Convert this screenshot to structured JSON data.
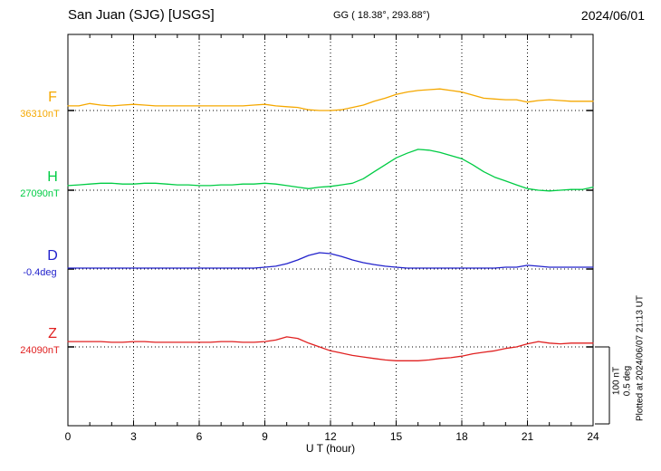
{
  "header": {
    "station": "San Juan (SJG)  [USGS]",
    "coordinates": "GG ( 18.38°, 293.88°)",
    "date": "2024/06/01"
  },
  "sidebar_right": {
    "scale_nt": "100 nT",
    "scale_deg": "0.5 deg",
    "plotted_at": "Plotted at 2024/06/07 21:13 UT"
  },
  "chart_data": {
    "type": "line",
    "title": "San Juan (SJG) [USGS] magnetogram 2024/06/01",
    "xlabel": "U T (hour)",
    "xlim": [
      0,
      24
    ],
    "x_ticks": [
      0,
      3,
      6,
      9,
      12,
      15,
      18,
      21,
      24
    ],
    "x_step_hours": 0.5,
    "grid": "vertical dotted lines at 3-hour ticks; dotted horizontal baseline per trace",
    "values_are_offsets_from_baseline": true,
    "scale": {
      "nT_per_division": 100,
      "deg_per_division": 0.5
    },
    "series": [
      {
        "name": "F",
        "label": "F",
        "baseline_label": "36310nT",
        "baseline_value": 36310,
        "unit": "nT",
        "color": "#f5a800",
        "values": [
          6,
          6,
          9,
          7,
          6,
          7,
          8,
          7,
          6,
          6,
          6,
          6,
          6,
          6,
          6,
          6,
          6,
          7,
          8,
          6,
          5,
          4,
          1,
          0,
          0,
          1,
          4,
          7,
          12,
          16,
          21,
          24,
          26,
          27,
          28,
          26,
          24,
          20,
          16,
          15,
          14,
          14,
          11,
          13,
          14,
          13,
          12,
          12,
          12
        ]
      },
      {
        "name": "H",
        "label": "H",
        "baseline_label": "27090nT",
        "baseline_value": 27090,
        "unit": "nT",
        "color": "#00cc44",
        "values": [
          6,
          7,
          8,
          9,
          9,
          8,
          8,
          9,
          9,
          8,
          7,
          7,
          6,
          6,
          7,
          7,
          8,
          8,
          9,
          8,
          6,
          4,
          2,
          4,
          5,
          7,
          9,
          15,
          24,
          33,
          42,
          48,
          53,
          52,
          49,
          45,
          41,
          33,
          24,
          17,
          12,
          7,
          2,
          0,
          -1,
          0,
          1,
          1,
          4
        ]
      },
      {
        "name": "D",
        "label": "D",
        "baseline_label": "-0.4deg",
        "baseline_value": -0.4,
        "unit": "deg",
        "color": "#2222cc",
        "values": [
          0.006,
          0.006,
          0.006,
          0.006,
          0.006,
          0.006,
          0.006,
          0.006,
          0.006,
          0.006,
          0.006,
          0.006,
          0.006,
          0.006,
          0.006,
          0.006,
          0.006,
          0.006,
          0.012,
          0.018,
          0.035,
          0.059,
          0.088,
          0.106,
          0.1,
          0.082,
          0.059,
          0.041,
          0.029,
          0.018,
          0.012,
          0.006,
          0.006,
          0.006,
          0.006,
          0.006,
          0.006,
          0.006,
          0.006,
          0.006,
          0.012,
          0.012,
          0.024,
          0.018,
          0.012,
          0.012,
          0.012,
          0.012,
          0.012
        ]
      },
      {
        "name": "Z",
        "label": "Z",
        "baseline_label": "24090nT",
        "baseline_value": 24090,
        "unit": "nT",
        "color": "#e02020",
        "values": [
          7,
          7,
          7,
          7,
          6,
          6,
          7,
          7,
          6,
          6,
          6,
          6,
          6,
          6,
          7,
          7,
          6,
          6,
          7,
          9,
          13,
          11,
          5,
          0,
          -5,
          -8,
          -11,
          -13,
          -15,
          -17,
          -18,
          -18,
          -18,
          -17,
          -15,
          -14,
          -12,
          -9,
          -7,
          -5,
          -2,
          0,
          4,
          7,
          5,
          4,
          5,
          5,
          5
        ]
      }
    ]
  }
}
